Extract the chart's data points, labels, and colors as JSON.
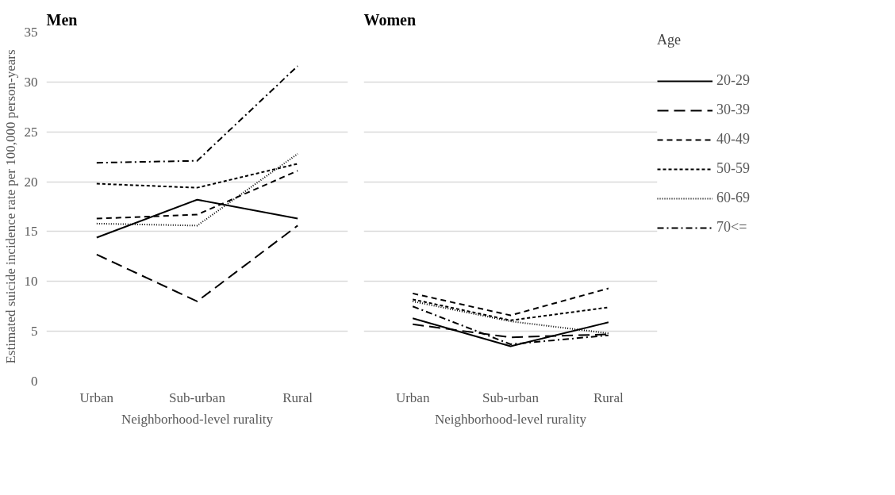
{
  "chart_data": [
    {
      "type": "line",
      "title": "Men",
      "xlabel": "Neighborhood-level rurality",
      "ylabel": "Estimated suicide incidence rate per 100,000 person-years",
      "legend_title": "Age",
      "categories": [
        "Urban",
        "Sub-urban",
        "Rural"
      ],
      "ylim": [
        0,
        35
      ],
      "yticks": [
        0,
        5,
        10,
        15,
        20,
        25,
        30,
        35
      ],
      "grid": "y",
      "legend": "right",
      "series": [
        {
          "name": "20-29",
          "color": "#000000",
          "line_style": "solid",
          "values": [
            14.4,
            18.2,
            16.3
          ]
        },
        {
          "name": "30-39",
          "color": "#000000",
          "line_style": "dashed",
          "values": [
            12.7,
            8.0,
            15.6
          ]
        },
        {
          "name": "40-49",
          "color": "#000000",
          "line_style": "dashed",
          "values": [
            16.3,
            16.7,
            21.1
          ]
        },
        {
          "name": "50-59",
          "color": "#000000",
          "line_style": "dashed",
          "values": [
            19.8,
            19.4,
            21.8
          ]
        },
        {
          "name": "60-69",
          "color": "#000000",
          "line_style": "dotted",
          "values": [
            15.8,
            15.6,
            22.8
          ]
        },
        {
          "name": "70<=",
          "color": "#000000",
          "line_style": "dashdot",
          "values": [
            21.9,
            22.1,
            31.6
          ]
        }
      ]
    },
    {
      "type": "line",
      "title": "Women",
      "xlabel": "Neighborhood-level rurality",
      "categories": [
        "Urban",
        "Sub-urban",
        "Rural"
      ],
      "ylim": [
        0,
        35
      ],
      "yticks": [
        0,
        5,
        10,
        15,
        20,
        25,
        30,
        35
      ],
      "grid": "y",
      "tick_labels": "x",
      "series": [
        {
          "color": "#000000",
          "line_style": "solid",
          "values": [
            6.3,
            3.5,
            5.9
          ]
        },
        {
          "color": "#000000",
          "line_style": "dashed",
          "values": [
            5.7,
            4.4,
            4.7
          ]
        },
        {
          "color": "#000000",
          "line_style": "dashed",
          "values": [
            8.8,
            6.6,
            9.3
          ]
        },
        {
          "color": "#000000",
          "line_style": "dashed",
          "values": [
            8.2,
            6.1,
            7.4
          ]
        },
        {
          "color": "#000000",
          "line_style": "dotted",
          "values": [
            8.0,
            6.0,
            4.8
          ]
        },
        {
          "color": "#000000",
          "line_style": "dashdot",
          "values": [
            7.5,
            3.7,
            4.6
          ]
        }
      ]
    }
  ]
}
